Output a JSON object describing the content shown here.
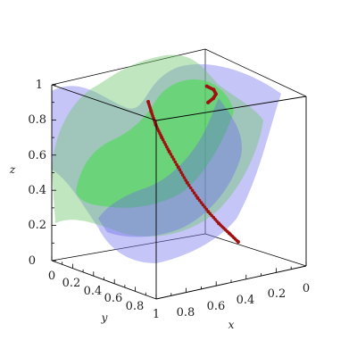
{
  "chart_data": {
    "type": "surface3d",
    "axes": {
      "x": {
        "label": "x",
        "range": [
          0,
          1
        ],
        "ticks": [
          "0",
          "0.2",
          "0.4",
          "0.6",
          "0.8",
          "1"
        ]
      },
      "y": {
        "label": "y",
        "range": [
          0,
          1
        ],
        "ticks": [
          "0",
          "0.2",
          "0.4",
          "0.6",
          "0.8",
          "1"
        ]
      },
      "z": {
        "label": "z",
        "range": [
          0,
          1
        ],
        "ticks": [
          "0",
          "0.2",
          "0.4",
          "0.6",
          "0.8",
          "1"
        ]
      }
    },
    "surfaces": [
      {
        "color": "#7e7ef0",
        "opacity": 0.45
      },
      {
        "color": "#74c774",
        "opacity": 0.45
      },
      {
        "color": "#35e035",
        "opacity": 0.5
      }
    ],
    "curve": {
      "color": "#a11010",
      "style": "points",
      "points": [
        [
          0.07,
          0.45,
          0.03
        ],
        [
          0.13,
          0.45,
          0.09
        ],
        [
          0.2,
          0.45,
          0.16
        ],
        [
          0.27,
          0.45,
          0.24
        ],
        [
          0.34,
          0.45,
          0.33
        ],
        [
          0.41,
          0.45,
          0.43
        ],
        [
          0.47,
          0.45,
          0.53
        ],
        [
          0.53,
          0.45,
          0.63
        ],
        [
          0.58,
          0.45,
          0.72
        ],
        [
          0.62,
          0.45,
          0.8
        ],
        [
          0.65,
          0.45,
          0.88
        ],
        [
          0.67,
          0.45,
          0.94
        ]
      ],
      "top_arc": [
        [
          0.55,
          0.85,
          1.0
        ],
        [
          0.48,
          0.8,
          1.0
        ],
        [
          0.42,
          0.74,
          1.0
        ],
        [
          0.38,
          0.66,
          1.0
        ],
        [
          0.37,
          0.58,
          1.0
        ]
      ]
    }
  }
}
